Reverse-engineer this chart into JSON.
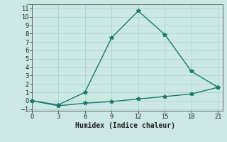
{
  "line1_x": [
    0,
    3,
    6,
    9,
    12,
    15,
    18,
    21
  ],
  "line1_y": [
    0.0,
    -0.5,
    1.0,
    7.5,
    10.7,
    7.9,
    3.5,
    1.6
  ],
  "line2_x": [
    0,
    3,
    6,
    9,
    12,
    15,
    18,
    21
  ],
  "line2_y": [
    0.0,
    -0.6,
    -0.3,
    -0.1,
    0.2,
    0.5,
    0.8,
    1.6
  ],
  "color": "#1a7a6e",
  "xlabel": "Humidex (Indice chaleur)",
  "xlim": [
    -0.5,
    21.5
  ],
  "ylim": [
    -1.2,
    11.5
  ],
  "xticks": [
    0,
    3,
    6,
    9,
    12,
    15,
    18,
    21
  ],
  "yticks": [
    -1,
    0,
    1,
    2,
    3,
    4,
    5,
    6,
    7,
    8,
    9,
    10,
    11
  ],
  "bg_color": "#cce8e4",
  "grid_color": "#aad4cf",
  "marker": "*",
  "markersize": 4,
  "linewidth": 1.0,
  "tick_fontsize": 6,
  "xlabel_fontsize": 7
}
